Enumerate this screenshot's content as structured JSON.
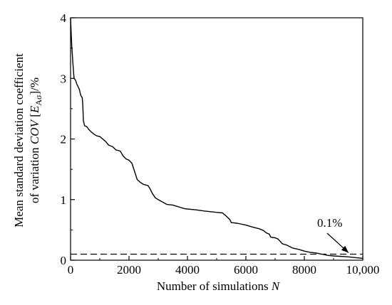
{
  "chart_data": {
    "type": "line",
    "xlabel": "Number of simulations",
    "xlabel_var": "N",
    "ylabel_line1": "Mean standard deviation coefficient",
    "ylabel_line2_prefix": "of variation",
    "ylabel_line2_cov": "COV",
    "ylabel_line2_E": "E",
    "ylabel_line2_sub": "Aσ",
    "ylabel_line2_suffix": "/%",
    "xlim": [
      0,
      10000
    ],
    "ylim": [
      0,
      4
    ],
    "x_ticks": [
      0,
      2000,
      4000,
      6000,
      8000,
      10000
    ],
    "x_tick_labels": [
      "0",
      "2000",
      "4000",
      "6000",
      "8000",
      "10,000"
    ],
    "y_ticks": [
      0,
      1,
      2,
      3,
      4
    ],
    "y_tick_labels": [
      "0",
      "1",
      "2",
      "3",
      "4"
    ],
    "threshold": {
      "value": 0.1,
      "label": "0.1%"
    },
    "grid": false,
    "series": [
      {
        "points": [
          [
            0,
            4.0
          ],
          [
            40,
            3.55
          ],
          [
            80,
            3.25
          ],
          [
            120,
            3.0
          ],
          [
            170,
            2.97
          ],
          [
            220,
            2.9
          ],
          [
            300,
            2.82
          ],
          [
            350,
            2.72
          ],
          [
            400,
            2.68
          ],
          [
            420,
            2.55
          ],
          [
            440,
            2.3
          ],
          [
            480,
            2.22
          ],
          [
            560,
            2.2
          ],
          [
            620,
            2.16
          ],
          [
            700,
            2.12
          ],
          [
            800,
            2.08
          ],
          [
            900,
            2.05
          ],
          [
            1000,
            2.04
          ],
          [
            1100,
            2.0
          ],
          [
            1200,
            1.96
          ],
          [
            1300,
            1.9
          ],
          [
            1450,
            1.87
          ],
          [
            1550,
            1.82
          ],
          [
            1700,
            1.8
          ],
          [
            1800,
            1.72
          ],
          [
            1900,
            1.67
          ],
          [
            2000,
            1.65
          ],
          [
            2100,
            1.6
          ],
          [
            2200,
            1.45
          ],
          [
            2280,
            1.33
          ],
          [
            2400,
            1.28
          ],
          [
            2500,
            1.25
          ],
          [
            2650,
            1.23
          ],
          [
            2720,
            1.18
          ],
          [
            2800,
            1.1
          ],
          [
            2900,
            1.03
          ],
          [
            3000,
            1.0
          ],
          [
            3150,
            0.96
          ],
          [
            3300,
            0.92
          ],
          [
            3500,
            0.91
          ],
          [
            3700,
            0.88
          ],
          [
            3900,
            0.85
          ],
          [
            4100,
            0.84
          ],
          [
            4300,
            0.83
          ],
          [
            4600,
            0.81
          ],
          [
            4800,
            0.8
          ],
          [
            5000,
            0.79
          ],
          [
            5200,
            0.78
          ],
          [
            5300,
            0.74
          ],
          [
            5450,
            0.67
          ],
          [
            5500,
            0.62
          ],
          [
            5700,
            0.61
          ],
          [
            6000,
            0.58
          ],
          [
            6200,
            0.55
          ],
          [
            6450,
            0.52
          ],
          [
            6600,
            0.49
          ],
          [
            6700,
            0.45
          ],
          [
            6800,
            0.43
          ],
          [
            6850,
            0.38
          ],
          [
            7000,
            0.37
          ],
          [
            7100,
            0.35
          ],
          [
            7250,
            0.27
          ],
          [
            7400,
            0.25
          ],
          [
            7600,
            0.2
          ],
          [
            7800,
            0.18
          ],
          [
            8000,
            0.15
          ],
          [
            8200,
            0.13
          ],
          [
            8400,
            0.12
          ],
          [
            8600,
            0.1
          ],
          [
            8800,
            0.08
          ],
          [
            9000,
            0.07
          ],
          [
            9200,
            0.065
          ],
          [
            9400,
            0.06
          ],
          [
            9600,
            0.05
          ],
          [
            9800,
            0.04
          ],
          [
            10000,
            0.03
          ]
        ]
      }
    ]
  }
}
